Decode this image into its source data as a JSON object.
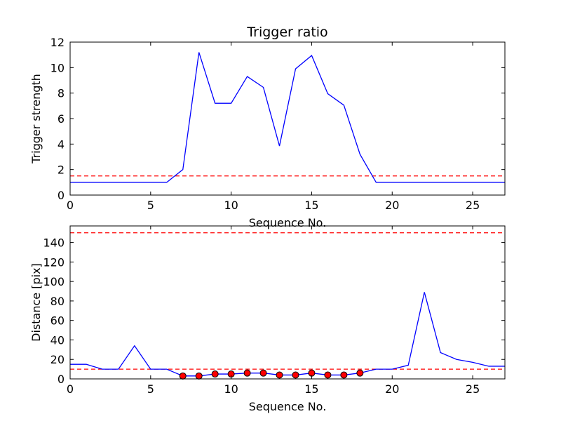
{
  "chart_data": [
    {
      "type": "line",
      "title": "Trigger ratio",
      "xlabel": "Sequence No.",
      "ylabel": "Trigger strength",
      "xlim": [
        0,
        27
      ],
      "ylim": [
        0,
        12
      ],
      "xticks": [
        0,
        5,
        10,
        15,
        20,
        25
      ],
      "yticks": [
        0,
        2,
        4,
        6,
        8,
        10,
        12
      ],
      "grid": false,
      "series": [
        {
          "color": "#0000ff",
          "style": "solid",
          "x": [
            0,
            1,
            2,
            3,
            4,
            5,
            6,
            7,
            8,
            9,
            10,
            11,
            12,
            13,
            14,
            15,
            16,
            17,
            18,
            19,
            20,
            21,
            22,
            23,
            24,
            25,
            26,
            27
          ],
          "y": [
            1,
            1,
            1,
            1,
            1,
            1,
            1,
            2,
            11.2,
            7.2,
            7.2,
            9.3,
            8.45,
            3.85,
            9.9,
            10.95,
            7.95,
            7.05,
            3.2,
            1,
            1,
            1,
            1,
            1,
            1,
            1,
            1,
            1
          ]
        }
      ],
      "hlines": [
        {
          "y": 1.5,
          "color": "#ff0000",
          "style": "dashed"
        }
      ]
    },
    {
      "type": "line",
      "title": "",
      "xlabel": "Sequence No.",
      "ylabel": "Distance [pix]",
      "xlim": [
        0,
        27
      ],
      "ylim": [
        0,
        157
      ],
      "xticks": [
        0,
        5,
        10,
        15,
        20,
        25
      ],
      "yticks": [
        0,
        20,
        40,
        60,
        80,
        100,
        120,
        140
      ],
      "grid": false,
      "series": [
        {
          "color": "#0000ff",
          "style": "solid",
          "x": [
            0,
            1,
            2,
            3,
            4,
            5,
            6,
            7,
            8,
            9,
            10,
            11,
            12,
            13,
            14,
            15,
            16,
            17,
            18,
            19,
            20,
            21,
            22,
            23,
            24,
            25,
            26,
            27
          ],
          "y": [
            15,
            15,
            10,
            10,
            34,
            10,
            10,
            3,
            3,
            5,
            5,
            6,
            6,
            4,
            4,
            6,
            4,
            4,
            6,
            10,
            10,
            14,
            89,
            27,
            20,
            17,
            13,
            13
          ]
        }
      ],
      "markers": {
        "color": "#ff0000",
        "edge": "#000000",
        "x": [
          7,
          8,
          9,
          10,
          11,
          12,
          13,
          14,
          15,
          16,
          17,
          18
        ],
        "y": [
          3,
          3,
          5,
          5,
          6,
          6,
          4,
          4,
          6,
          4,
          4,
          6
        ]
      },
      "hlines": [
        {
          "y": 10,
          "color": "#ff0000",
          "style": "dashed"
        },
        {
          "y": 150,
          "color": "#ff0000",
          "style": "dashed"
        }
      ]
    }
  ]
}
